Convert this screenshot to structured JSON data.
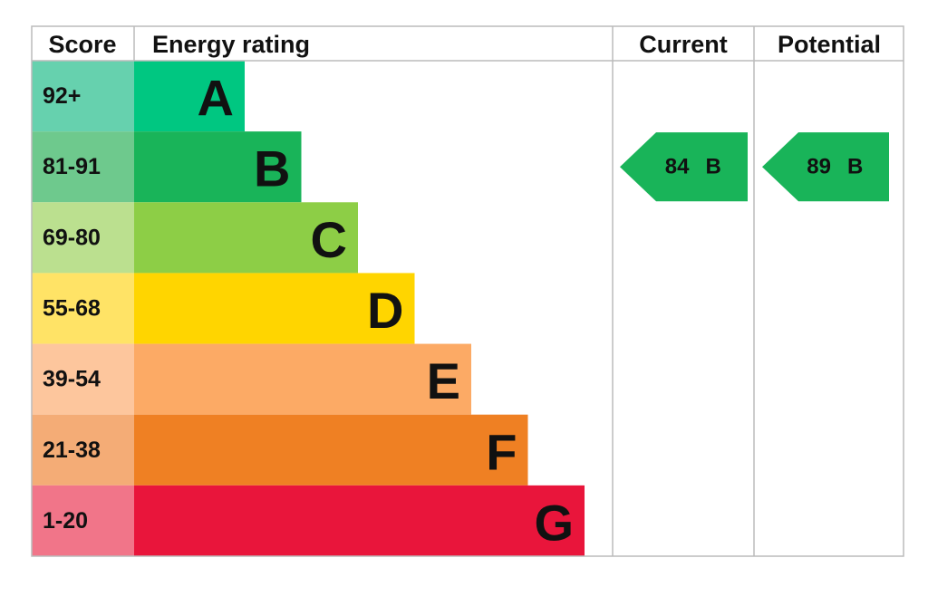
{
  "header": {
    "score": "Score",
    "rating": "Energy rating",
    "current": "Current",
    "potential": "Potential"
  },
  "bands": [
    {
      "score": "92+",
      "letter": "A",
      "color": "#00c781",
      "score_color": "#66d1ae"
    },
    {
      "score": "81-91",
      "letter": "B",
      "color": "#19b459",
      "score_color": "#6ec98d"
    },
    {
      "score": "69-80",
      "letter": "C",
      "color": "#8dce46",
      "score_color": "#bbe08f"
    },
    {
      "score": "55-68",
      "letter": "D",
      "color": "#ffd500",
      "score_color": "#ffe366"
    },
    {
      "score": "39-54",
      "letter": "E",
      "color": "#fcaa65",
      "score_color": "#fdc69d"
    },
    {
      "score": "21-38",
      "letter": "F",
      "color": "#ef8023",
      "score_color": "#f4ac76"
    },
    {
      "score": "1-20",
      "letter": "G",
      "color": "#e9153b",
      "score_color": "#f17589"
    }
  ],
  "current": {
    "score": "84",
    "letter": "B"
  },
  "potential": {
    "score": "89",
    "letter": "B"
  }
}
